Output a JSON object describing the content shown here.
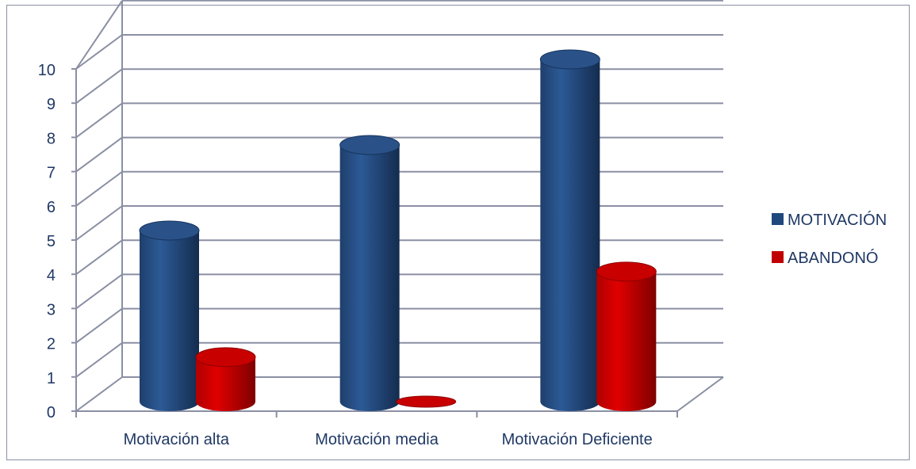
{
  "chart_data": {
    "type": "bar",
    "categories": [
      "Motivación alta",
      "Motivación media",
      "Motivación Deficiente"
    ],
    "series": [
      {
        "name": "MOTIVACIÓN",
        "values": [
          5,
          7.5,
          10
        ],
        "color": "#1F497D"
      },
      {
        "name": "ABANDONÓ",
        "values": [
          1.3,
          0,
          3.8
        ],
        "color": "#C00000"
      }
    ],
    "ylim": [
      0,
      10
    ],
    "yticks": [
      "0",
      "1",
      "2",
      "3",
      "4",
      "5",
      "6",
      "7",
      "8",
      "9",
      "10"
    ],
    "grid": true,
    "legend": "right",
    "bar_shape": "cylinder-3d"
  }
}
